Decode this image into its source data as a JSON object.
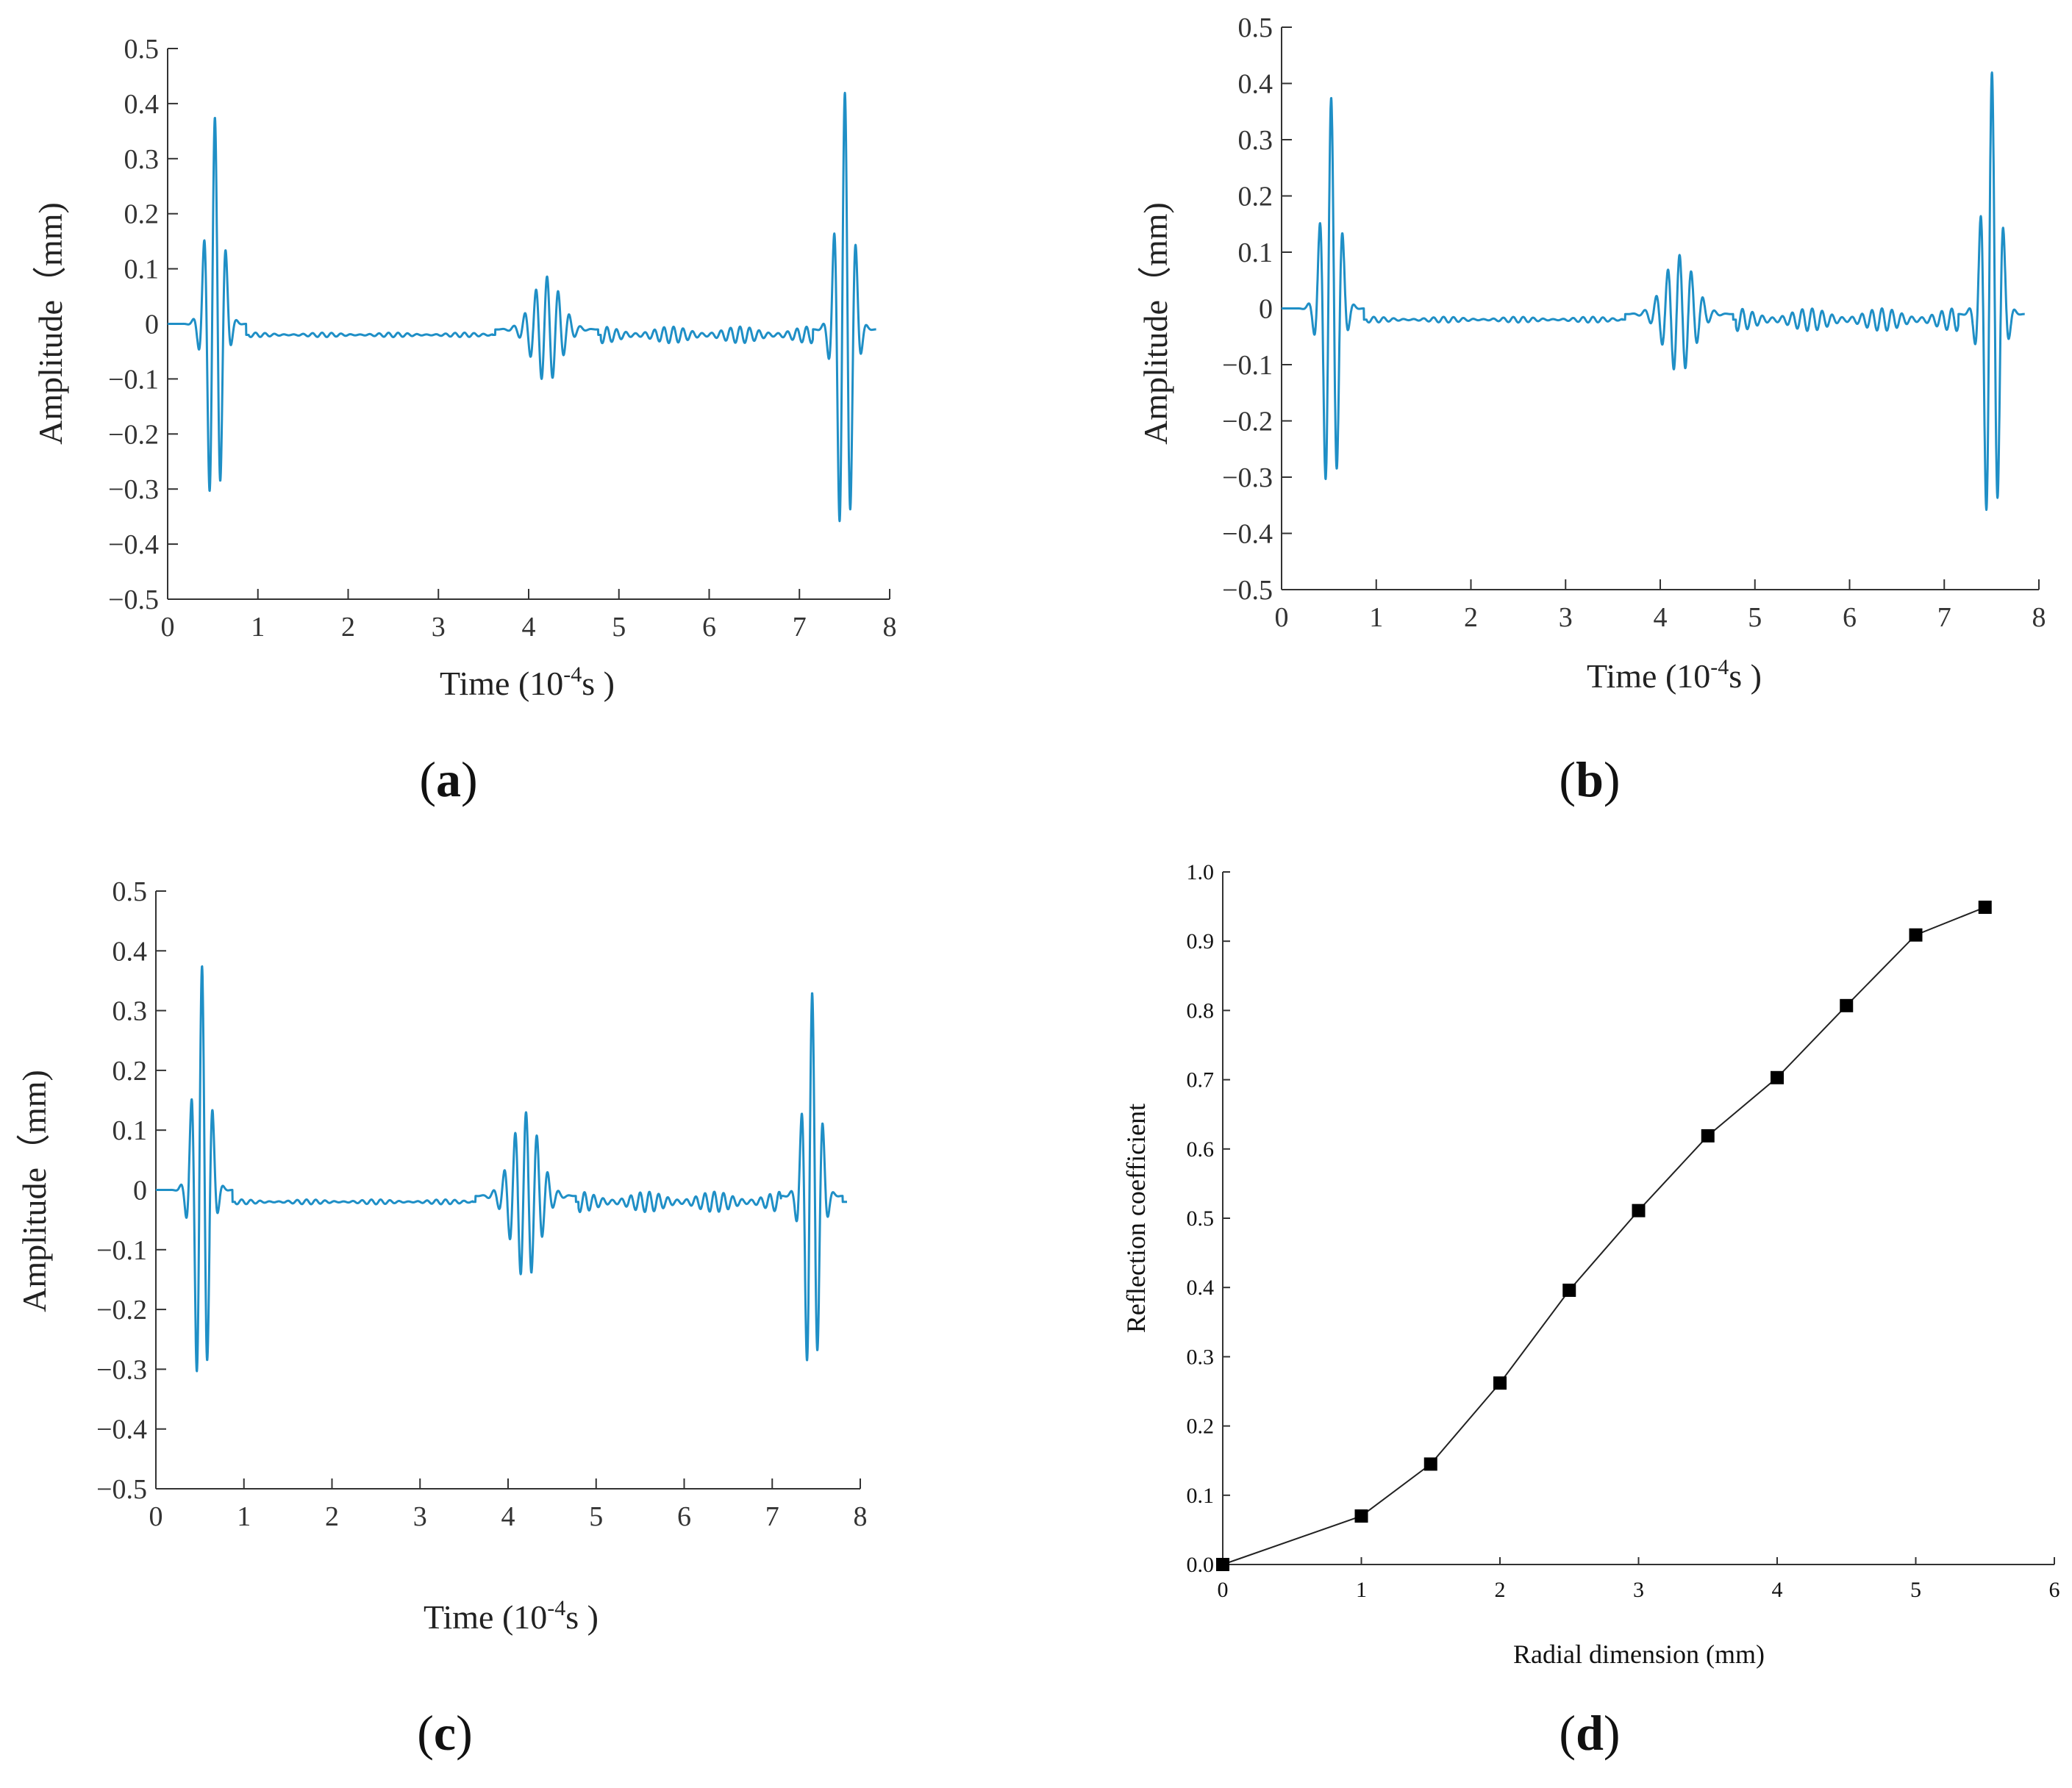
{
  "colors": {
    "signal": "#1f8fc6",
    "axis": "#333333",
    "marker": "#000000",
    "curve": "#222222"
  },
  "chart_data": [
    {
      "id": "a",
      "panel_letter": "a",
      "type": "line",
      "xlabel": "Time (10⁻⁴s )",
      "xlabel_parts": {
        "prefix": "Time (10",
        "exp": "-4",
        "suffix": "s )"
      },
      "ylabel": "Amplitude（mm)",
      "xlim": [
        0,
        8
      ],
      "ylim": [
        -0.5,
        0.5
      ],
      "xticks": [
        "0",
        "1",
        "2",
        "3",
        "4",
        "5",
        "6",
        "7",
        "8"
      ],
      "yticks": [
        "0.5",
        "0.4",
        "0.3",
        "0.2",
        "0.1",
        "0",
        "−0.1",
        "−0.2",
        "−0.3",
        "−0.4",
        "−0.5"
      ],
      "packets": [
        {
          "center": 0.52,
          "half_width": 0.35,
          "freq": 8.1,
          "peak": 0.375,
          "decay": 0.45
        },
        {
          "center": 4.2,
          "half_width": 0.57,
          "freq": 8.1,
          "peak": 0.096,
          "decay": 0.5
        },
        {
          "center": 7.5,
          "half_width": 0.35,
          "freq": 8.1,
          "peak": 0.43,
          "decay": 0.45
        }
      ],
      "baseline": -0.02,
      "noise": [
        {
          "from": 0.9,
          "to": 3.6,
          "amp": 0.004
        },
        {
          "from": 4.8,
          "to": 7.15,
          "amp": 0.015
        }
      ],
      "x_end": 7.85
    },
    {
      "id": "b",
      "panel_letter": "b",
      "type": "line",
      "xlabel": "Time (10⁻⁴s )",
      "xlabel_parts": {
        "prefix": "Time (10",
        "exp": "-4",
        "suffix": "s )"
      },
      "ylabel": "Amplitude（mm)",
      "xlim": [
        0,
        8
      ],
      "ylim": [
        -0.5,
        0.5
      ],
      "xticks": [
        "0",
        "1",
        "2",
        "3",
        "4",
        "5",
        "6",
        "7",
        "8"
      ],
      "yticks": [
        "0.5",
        "0.4",
        "0.3",
        "0.2",
        "0.1",
        "0",
        "−0.1",
        "−0.2",
        "−0.3",
        "−0.4",
        "−0.5"
      ],
      "packets": [
        {
          "center": 0.52,
          "half_width": 0.35,
          "freq": 8.1,
          "peak": 0.375,
          "decay": 0.45
        },
        {
          "center": 4.2,
          "half_width": 0.57,
          "freq": 8.1,
          "peak": 0.105,
          "decay": 0.5
        },
        {
          "center": 7.5,
          "half_width": 0.35,
          "freq": 8.1,
          "peak": 0.43,
          "decay": 0.45
        }
      ],
      "baseline": -0.02,
      "noise": [
        {
          "from": 0.9,
          "to": 3.6,
          "amp": 0.005
        },
        {
          "from": 4.8,
          "to": 7.15,
          "amp": 0.02
        }
      ],
      "x_end": 7.85
    },
    {
      "id": "c",
      "panel_letter": "c",
      "type": "line",
      "xlabel": "Time (10⁻⁴s )",
      "xlabel_parts": {
        "prefix": "Time (10",
        "exp": "-4",
        "suffix": "s )"
      },
      "ylabel": "Amplitude（mm)",
      "xlim": [
        0,
        8
      ],
      "ylim": [
        -0.5,
        0.5
      ],
      "xticks": [
        "0",
        "1",
        "2",
        "3",
        "4",
        "5",
        "6",
        "7",
        "8"
      ],
      "yticks": [
        "0.5",
        "0.4",
        "0.3",
        "0.2",
        "0.1",
        "0",
        "−0.1",
        "−0.2",
        "−0.3",
        "−0.4",
        "−0.5"
      ],
      "packets": [
        {
          "center": 0.52,
          "half_width": 0.35,
          "freq": 8.1,
          "peak": 0.375,
          "decay": 0.45
        },
        {
          "center": 4.2,
          "half_width": 0.57,
          "freq": 8.1,
          "peak": 0.14,
          "decay": 0.5
        },
        {
          "center": 7.45,
          "half_width": 0.35,
          "freq": 8.1,
          "peak": 0.34,
          "decay": 0.45
        }
      ],
      "baseline": -0.02,
      "noise": [
        {
          "from": 0.9,
          "to": 3.6,
          "amp": 0.004
        },
        {
          "from": 4.8,
          "to": 7.1,
          "amp": 0.017
        }
      ],
      "x_end": 7.85
    },
    {
      "id": "d",
      "panel_letter": "d",
      "type": "line",
      "xlabel": "Radial dimension (mm)",
      "ylabel": "Reflection coefficient",
      "xlim": [
        0,
        6
      ],
      "ylim": [
        0,
        1.0
      ],
      "xticks": [
        "0",
        "1",
        "2",
        "3",
        "4",
        "5",
        "6"
      ],
      "yticks": [
        "1.0",
        "0.9",
        "0.8",
        "0.7",
        "0.6",
        "0.5",
        "0.4",
        "0.3",
        "0.2",
        "0.1",
        "0.0"
      ],
      "x": [
        0,
        1,
        1.5,
        2,
        2.5,
        3,
        3.5,
        4,
        4.5,
        5,
        5.5
      ],
      "y": [
        0.0,
        0.07,
        0.145,
        0.262,
        0.396,
        0.511,
        0.619,
        0.703,
        0.807,
        0.909,
        0.949
      ]
    }
  ]
}
